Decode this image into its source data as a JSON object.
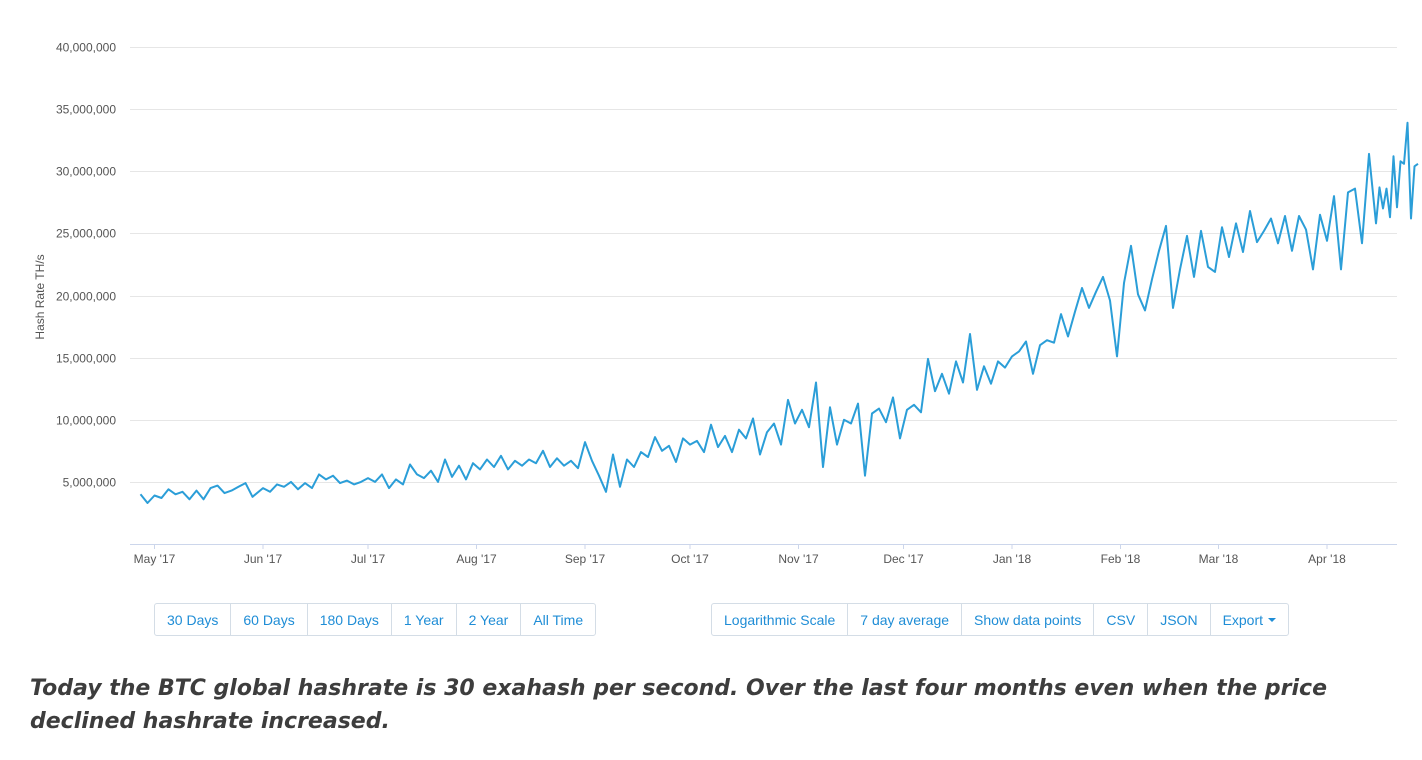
{
  "chart_data": {
    "type": "line",
    "title": "",
    "xlabel": "",
    "ylabel": "Hash Rate TH/s",
    "ylim": [
      0,
      40000000
    ],
    "yticks": [
      5000000,
      10000000,
      15000000,
      20000000,
      25000000,
      30000000,
      35000000,
      40000000
    ],
    "ytick_labels": [
      "5,000,000",
      "10,000,000",
      "15,000,000",
      "20,000,000",
      "25,000,000",
      "30,000,000",
      "35,000,000",
      "40,000,000"
    ],
    "xlim": [
      "2017-04-24",
      "2018-04-22"
    ],
    "xticks": [
      "2017-05-01",
      "2017-06-01",
      "2017-07-01",
      "2017-08-01",
      "2017-09-01",
      "2017-10-01",
      "2017-11-01",
      "2017-12-01",
      "2018-01-01",
      "2018-02-01",
      "2018-03-01",
      "2018-04-01"
    ],
    "xtick_labels": [
      "May '17",
      "Jun '17",
      "Jul '17",
      "Aug '17",
      "Sep '17",
      "Oct '17",
      "Nov '17",
      "Dec '17",
      "Jan '18",
      "Feb '18",
      "Mar '18",
      "Apr '18"
    ],
    "grid": true,
    "color": "#2b9ed8",
    "series": [
      {
        "points": [
          [
            "2017-04-27",
            4000000
          ],
          [
            "2017-04-29",
            3300000
          ],
          [
            "2017-05-01",
            3900000
          ],
          [
            "2017-05-03",
            3700000
          ],
          [
            "2017-05-05",
            4400000
          ],
          [
            "2017-05-07",
            4000000
          ],
          [
            "2017-05-09",
            4200000
          ],
          [
            "2017-05-11",
            3600000
          ],
          [
            "2017-05-13",
            4300000
          ],
          [
            "2017-05-15",
            3600000
          ],
          [
            "2017-05-17",
            4500000
          ],
          [
            "2017-05-19",
            4700000
          ],
          [
            "2017-05-21",
            4100000
          ],
          [
            "2017-05-23",
            4300000
          ],
          [
            "2017-05-25",
            4600000
          ],
          [
            "2017-05-27",
            4900000
          ],
          [
            "2017-05-29",
            3800000
          ],
          [
            "2017-06-01",
            4500000
          ],
          [
            "2017-06-03",
            4200000
          ],
          [
            "2017-06-05",
            4800000
          ],
          [
            "2017-06-07",
            4600000
          ],
          [
            "2017-06-09",
            5000000
          ],
          [
            "2017-06-11",
            4400000
          ],
          [
            "2017-06-13",
            4900000
          ],
          [
            "2017-06-15",
            4500000
          ],
          [
            "2017-06-17",
            5600000
          ],
          [
            "2017-06-19",
            5200000
          ],
          [
            "2017-06-21",
            5500000
          ],
          [
            "2017-06-23",
            4900000
          ],
          [
            "2017-06-25",
            5100000
          ],
          [
            "2017-06-27",
            4800000
          ],
          [
            "2017-06-29",
            5000000
          ],
          [
            "2017-07-01",
            5300000
          ],
          [
            "2017-07-03",
            5000000
          ],
          [
            "2017-07-05",
            5600000
          ],
          [
            "2017-07-07",
            4500000
          ],
          [
            "2017-07-09",
            5200000
          ],
          [
            "2017-07-11",
            4800000
          ],
          [
            "2017-07-13",
            6400000
          ],
          [
            "2017-07-15",
            5600000
          ],
          [
            "2017-07-17",
            5300000
          ],
          [
            "2017-07-19",
            5900000
          ],
          [
            "2017-07-21",
            5000000
          ],
          [
            "2017-07-23",
            6800000
          ],
          [
            "2017-07-25",
            5400000
          ],
          [
            "2017-07-27",
            6300000
          ],
          [
            "2017-07-29",
            5200000
          ],
          [
            "2017-07-31",
            6500000
          ],
          [
            "2017-08-02",
            6000000
          ],
          [
            "2017-08-04",
            6800000
          ],
          [
            "2017-08-06",
            6200000
          ],
          [
            "2017-08-08",
            7100000
          ],
          [
            "2017-08-10",
            6000000
          ],
          [
            "2017-08-12",
            6700000
          ],
          [
            "2017-08-14",
            6300000
          ],
          [
            "2017-08-16",
            6800000
          ],
          [
            "2017-08-18",
            6500000
          ],
          [
            "2017-08-20",
            7500000
          ],
          [
            "2017-08-22",
            6200000
          ],
          [
            "2017-08-24",
            6900000
          ],
          [
            "2017-08-26",
            6300000
          ],
          [
            "2017-08-28",
            6700000
          ],
          [
            "2017-08-30",
            6100000
          ],
          [
            "2017-09-01",
            8200000
          ],
          [
            "2017-09-03",
            6700000
          ],
          [
            "2017-09-05",
            5500000
          ],
          [
            "2017-09-07",
            4200000
          ],
          [
            "2017-09-09",
            7200000
          ],
          [
            "2017-09-11",
            4600000
          ],
          [
            "2017-09-13",
            6800000
          ],
          [
            "2017-09-15",
            6200000
          ],
          [
            "2017-09-17",
            7400000
          ],
          [
            "2017-09-19",
            7000000
          ],
          [
            "2017-09-21",
            8600000
          ],
          [
            "2017-09-23",
            7500000
          ],
          [
            "2017-09-25",
            7900000
          ],
          [
            "2017-09-27",
            6600000
          ],
          [
            "2017-09-29",
            8500000
          ],
          [
            "2017-10-01",
            8000000
          ],
          [
            "2017-10-03",
            8300000
          ],
          [
            "2017-10-05",
            7400000
          ],
          [
            "2017-10-07",
            9600000
          ],
          [
            "2017-10-09",
            7800000
          ],
          [
            "2017-10-11",
            8700000
          ],
          [
            "2017-10-13",
            7400000
          ],
          [
            "2017-10-15",
            9200000
          ],
          [
            "2017-10-17",
            8500000
          ],
          [
            "2017-10-19",
            10100000
          ],
          [
            "2017-10-21",
            7200000
          ],
          [
            "2017-10-23",
            9000000
          ],
          [
            "2017-10-25",
            9700000
          ],
          [
            "2017-10-27",
            8000000
          ],
          [
            "2017-10-29",
            11600000
          ],
          [
            "2017-10-31",
            9700000
          ],
          [
            "2017-11-02",
            10800000
          ],
          [
            "2017-11-04",
            9400000
          ],
          [
            "2017-11-06",
            13000000
          ],
          [
            "2017-11-08",
            6200000
          ],
          [
            "2017-11-10",
            11000000
          ],
          [
            "2017-11-12",
            8000000
          ],
          [
            "2017-11-14",
            10000000
          ],
          [
            "2017-11-16",
            9700000
          ],
          [
            "2017-11-18",
            11300000
          ],
          [
            "2017-11-20",
            5500000
          ],
          [
            "2017-11-22",
            10500000
          ],
          [
            "2017-11-24",
            10900000
          ],
          [
            "2017-11-26",
            9800000
          ],
          [
            "2017-11-28",
            11800000
          ],
          [
            "2017-11-30",
            8500000
          ],
          [
            "2017-12-02",
            10800000
          ],
          [
            "2017-12-04",
            11200000
          ],
          [
            "2017-12-06",
            10600000
          ],
          [
            "2017-12-08",
            14900000
          ],
          [
            "2017-12-10",
            12300000
          ],
          [
            "2017-12-12",
            13700000
          ],
          [
            "2017-12-14",
            12100000
          ],
          [
            "2017-12-16",
            14700000
          ],
          [
            "2017-12-18",
            13000000
          ],
          [
            "2017-12-20",
            16900000
          ],
          [
            "2017-12-22",
            12400000
          ],
          [
            "2017-12-24",
            14300000
          ],
          [
            "2017-12-26",
            12900000
          ],
          [
            "2017-12-28",
            14700000
          ],
          [
            "2017-12-30",
            14200000
          ],
          [
            "2018-01-01",
            15100000
          ],
          [
            "2018-01-03",
            15500000
          ],
          [
            "2018-01-05",
            16300000
          ],
          [
            "2018-01-07",
            13700000
          ],
          [
            "2018-01-09",
            16000000
          ],
          [
            "2018-01-11",
            16400000
          ],
          [
            "2018-01-13",
            16200000
          ],
          [
            "2018-01-15",
            18500000
          ],
          [
            "2018-01-17",
            16700000
          ],
          [
            "2018-01-19",
            18700000
          ],
          [
            "2018-01-21",
            20600000
          ],
          [
            "2018-01-23",
            19000000
          ],
          [
            "2018-01-25",
            20300000
          ],
          [
            "2018-01-27",
            21500000
          ],
          [
            "2018-01-29",
            19600000
          ],
          [
            "2018-01-31",
            15100000
          ],
          [
            "2018-02-02",
            21000000
          ],
          [
            "2018-02-04",
            24000000
          ],
          [
            "2018-02-06",
            20100000
          ],
          [
            "2018-02-08",
            18800000
          ],
          [
            "2018-02-10",
            21300000
          ],
          [
            "2018-02-12",
            23600000
          ],
          [
            "2018-02-14",
            25600000
          ],
          [
            "2018-02-16",
            19000000
          ],
          [
            "2018-02-18",
            22100000
          ],
          [
            "2018-02-20",
            24800000
          ],
          [
            "2018-02-22",
            21500000
          ],
          [
            "2018-02-24",
            25200000
          ],
          [
            "2018-02-26",
            22300000
          ],
          [
            "2018-02-28",
            21900000
          ],
          [
            "2018-03-02",
            25500000
          ],
          [
            "2018-03-04",
            23100000
          ],
          [
            "2018-03-06",
            25800000
          ],
          [
            "2018-03-08",
            23500000
          ],
          [
            "2018-03-10",
            26800000
          ],
          [
            "2018-03-12",
            24300000
          ],
          [
            "2018-03-14",
            25200000
          ],
          [
            "2018-03-16",
            26200000
          ],
          [
            "2018-03-18",
            24200000
          ],
          [
            "2018-03-20",
            26400000
          ],
          [
            "2018-03-22",
            23600000
          ],
          [
            "2018-03-24",
            26400000
          ],
          [
            "2018-03-26",
            25300000
          ],
          [
            "2018-03-28",
            22100000
          ],
          [
            "2018-03-30",
            26500000
          ],
          [
            "2018-04-01",
            24400000
          ],
          [
            "2018-04-03",
            28000000
          ],
          [
            "2018-04-05",
            22100000
          ],
          [
            "2018-04-07",
            28300000
          ],
          [
            "2018-04-09",
            28600000
          ],
          [
            "2018-04-11",
            24200000
          ],
          [
            "2018-04-13",
            31400000
          ],
          [
            "2018-04-15",
            25800000
          ],
          [
            "2018-04-16",
            28700000
          ],
          [
            "2018-04-17",
            27000000
          ],
          [
            "2018-04-18",
            28600000
          ],
          [
            "2018-04-19",
            26300000
          ],
          [
            "2018-04-20",
            31200000
          ],
          [
            "2018-04-21",
            27100000
          ],
          [
            "2018-04-22",
            30800000
          ],
          [
            "2018-04-23",
            30600000
          ],
          [
            "2018-04-24",
            33900000
          ],
          [
            "2018-04-25",
            26200000
          ],
          [
            "2018-04-26",
            30400000
          ],
          [
            "2018-04-27",
            30600000
          ]
        ]
      }
    ]
  },
  "range_buttons": [
    {
      "key": "30-days",
      "label": "30 Days"
    },
    {
      "key": "60-days",
      "label": "60 Days"
    },
    {
      "key": "180-days",
      "label": "180 Days"
    },
    {
      "key": "1-year",
      "label": "1 Year"
    },
    {
      "key": "2-year",
      "label": "2 Year"
    },
    {
      "key": "all-time",
      "label": "All Time"
    }
  ],
  "option_buttons": [
    {
      "key": "logarithmic-scale",
      "label": "Logarithmic Scale"
    },
    {
      "key": "7-day-average",
      "label": "7 day average"
    },
    {
      "key": "show-data-points",
      "label": "Show data points"
    },
    {
      "key": "csv",
      "label": "CSV"
    },
    {
      "key": "json",
      "label": "JSON"
    },
    {
      "key": "export",
      "label": "Export",
      "has_caret": true
    }
  ],
  "caption": "Today the BTC global hashrate is 30 exahash per second. Over the last four months even when the price declined hashrate increased."
}
